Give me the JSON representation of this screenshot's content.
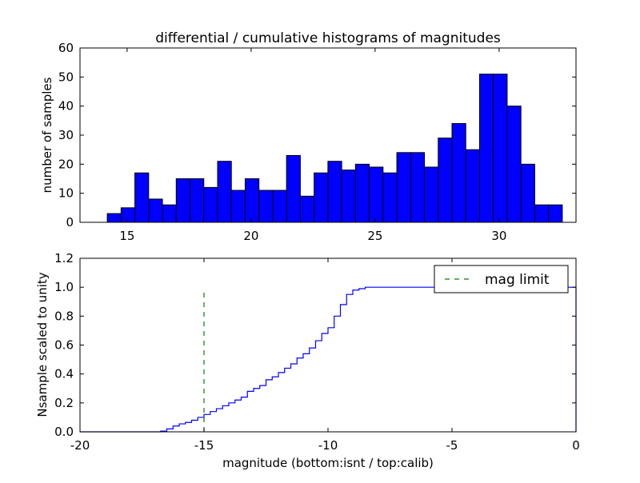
{
  "chart_data": [
    {
      "type": "bar",
      "title": "differential / cumulative histograms of magnitudes",
      "xlabel": "",
      "ylabel": "number of samples",
      "xlim": [
        13.1,
        33.1
      ],
      "ylim": [
        0,
        60
      ],
      "xticks": [
        15,
        20,
        25,
        30
      ],
      "yticks": [
        0,
        10,
        20,
        30,
        40,
        50,
        60
      ],
      "bin_start": 14.2,
      "bin_width": 0.556,
      "values": [
        3,
        5,
        17,
        8,
        6,
        15,
        15,
        12,
        21,
        11,
        15,
        11,
        11,
        23,
        9,
        17,
        21,
        18,
        20,
        19,
        17,
        24,
        24,
        19,
        29,
        34,
        25,
        51,
        51,
        40,
        20,
        6,
        6
      ],
      "bar_color": "#0000ff"
    },
    {
      "type": "line",
      "xlabel": "magnitude (bottom:isnt / top:calib)",
      "ylabel": "Nsample scaled to unity",
      "xlim": [
        -20,
        0
      ],
      "ylim": [
        0,
        1.2
      ],
      "xticks": [
        -20,
        -15,
        -10,
        -5,
        0
      ],
      "yticks": [
        "0.0",
        "0.2",
        "0.4",
        "0.6",
        "0.8",
        "1.0",
        "1.2"
      ],
      "step_x": [
        -16.75,
        -16.5,
        -16.25,
        -16.0,
        -15.75,
        -15.5,
        -15.25,
        -15.0,
        -14.75,
        -14.5,
        -14.25,
        -14.0,
        -13.75,
        -13.5,
        -13.25,
        -13.0,
        -12.75,
        -12.5,
        -12.25,
        -12.0,
        -11.75,
        -11.5,
        -11.25,
        -11.0,
        -10.75,
        -10.5,
        -10.25,
        -10.0,
        -9.75,
        -9.5,
        -9.25,
        -9.0,
        -8.75,
        -8.5
      ],
      "step_y": [
        0.005,
        0.02,
        0.04,
        0.055,
        0.065,
        0.08,
        0.1,
        0.12,
        0.14,
        0.16,
        0.18,
        0.2,
        0.22,
        0.24,
        0.28,
        0.3,
        0.32,
        0.36,
        0.38,
        0.41,
        0.44,
        0.47,
        0.51,
        0.54,
        0.58,
        0.63,
        0.68,
        0.72,
        0.8,
        0.88,
        0.95,
        0.98,
        0.99,
        1.0
      ],
      "line_color": "#0000ff",
      "mag_limit": {
        "x": -15,
        "y_top": 0.97,
        "color": "#007f00"
      },
      "legend": {
        "position": "top-right",
        "entries": [
          "mag limit"
        ]
      }
    }
  ]
}
